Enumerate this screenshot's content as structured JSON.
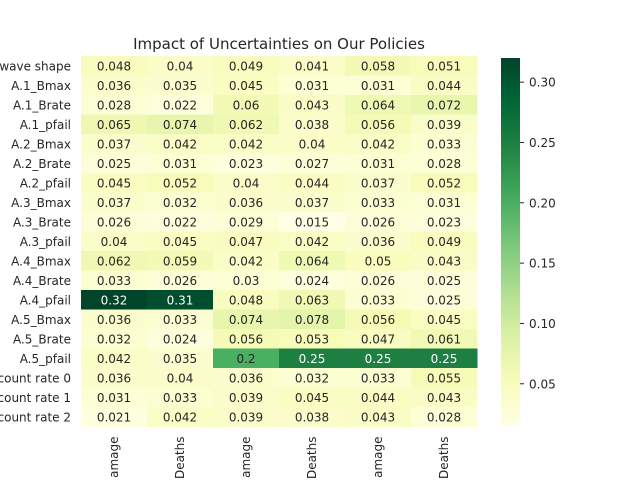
{
  "chart_data": {
    "type": "heatmap",
    "title": "Impact of Uncertainties on Our Policies",
    "rows": [
      "wave shape",
      "A.1_Bmax",
      "A.1_Brate",
      "A.1_pfail",
      "A.2_Bmax",
      "A.2_Brate",
      "A.2_pfail",
      "A.3_Bmax",
      "A.3_Brate",
      "A.3_pfail",
      "A.4_Bmax",
      "A.4_Brate",
      "A.4_pfail",
      "A.5_Bmax",
      "A.5_Brate",
      "A.5_pfail",
      "count rate 0",
      "count rate 1",
      "count rate 2"
    ],
    "columns": [
      "amage",
      "Deaths",
      "amage",
      "Deaths",
      "amage",
      "Deaths"
    ],
    "values": [
      [
        0.048,
        0.04,
        0.049,
        0.041,
        0.058,
        0.051
      ],
      [
        0.036,
        0.035,
        0.045,
        0.031,
        0.031,
        0.044
      ],
      [
        0.028,
        0.022,
        0.06,
        0.043,
        0.064,
        0.072
      ],
      [
        0.065,
        0.074,
        0.062,
        0.038,
        0.056,
        0.039
      ],
      [
        0.037,
        0.042,
        0.042,
        0.04,
        0.042,
        0.033
      ],
      [
        0.025,
        0.031,
        0.023,
        0.027,
        0.031,
        0.028
      ],
      [
        0.045,
        0.052,
        0.04,
        0.044,
        0.037,
        0.052
      ],
      [
        0.037,
        0.032,
        0.036,
        0.037,
        0.033,
        0.031
      ],
      [
        0.026,
        0.022,
        0.029,
        0.015,
        0.026,
        0.023
      ],
      [
        0.04,
        0.045,
        0.047,
        0.042,
        0.036,
        0.049
      ],
      [
        0.062,
        0.059,
        0.042,
        0.064,
        0.05,
        0.043
      ],
      [
        0.033,
        0.026,
        0.03,
        0.024,
        0.026,
        0.025
      ],
      [
        0.32,
        0.31,
        0.048,
        0.063,
        0.033,
        0.025
      ],
      [
        0.036,
        0.033,
        0.074,
        0.078,
        0.056,
        0.045
      ],
      [
        0.032,
        0.024,
        0.056,
        0.053,
        0.047,
        0.061
      ],
      [
        0.042,
        0.035,
        0.2,
        0.25,
        0.25,
        0.25
      ],
      [
        0.036,
        0.04,
        0.036,
        0.032,
        0.033,
        0.055
      ],
      [
        0.031,
        0.033,
        0.039,
        0.045,
        0.044,
        0.043
      ],
      [
        0.021,
        0.042,
        0.039,
        0.038,
        0.043,
        0.028
      ]
    ],
    "colormap": "YlGn",
    "color_range": [
      0.015,
      0.32
    ],
    "colorbar": {
      "ticks": [
        0.05,
        0.1,
        0.15,
        0.2,
        0.25,
        0.3
      ],
      "tick_labels": [
        "0.05",
        "0.10",
        "0.15",
        "0.20",
        "0.25",
        "0.30"
      ],
      "placement": "right"
    },
    "annotations": "cell values shown in each cell",
    "grid": false
  }
}
